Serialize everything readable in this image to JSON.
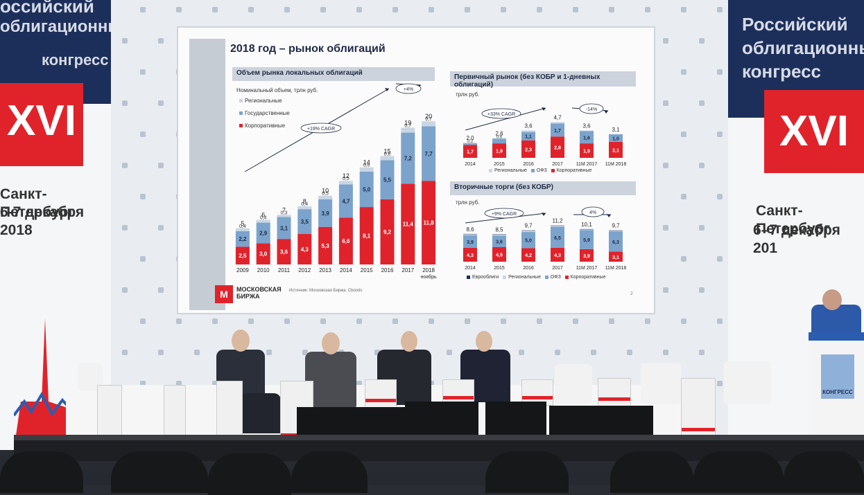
{
  "slide": {
    "title": "2018 год – рынок облигаций",
    "left_panel_title": "Объем рынка локальных облигаций",
    "left_subtitle": "Номинальный объем, трлн руб.",
    "legend": [
      "Региональные",
      "Государственные",
      "Корпоративные"
    ],
    "cagr_label": "+19% CAGR",
    "yoy_label": "+4%",
    "right_top_title": "Первичный рынок (без КОБР и 1-дневных облигаций)",
    "right_top_unit": "трлн руб.",
    "right_top_cagr": "+33% CAGR",
    "right_top_yoy": "-14%",
    "right_top_legend": [
      "Региональные",
      "ОФЗ",
      "Корпоративные"
    ],
    "right_bottom_title": "Вторичные торги (без КОБР)",
    "right_bottom_unit": "трлн руб.",
    "right_bottom_cagr": "+9% CAGR",
    "right_bottom_yoy": "4%",
    "right_bottom_legend": [
      "Еврооблиги",
      "Региональные",
      "ОФЗ",
      "Корпоративные"
    ],
    "logo_line1": "МОСКОВСКАЯ",
    "logo_line2": "БИРЖА",
    "source": "Источник: Московская Биржа, Cbonds",
    "page": "2"
  },
  "banners": {
    "left_title": [
      "оссийский",
      "облигационный",
      "конгресс"
    ],
    "left_number": "XVI",
    "left_city": [
      "Санкт-Петербург",
      "6-7 декабря 2018"
    ],
    "right_title": [
      "Российский",
      "облигационный",
      "конгресс"
    ],
    "right_number": "XVI",
    "right_city": [
      "Санкт-Петербург",
      "6–7 декабря 201"
    ]
  },
  "desk_logo": "КОНГРЕСС",
  "colors": {
    "red": "#e0232b",
    "blue": "#7ba3cc",
    "light": "#c9d6e3",
    "navy": "#1c2f5a"
  },
  "chart_data": [
    {
      "type": "bar",
      "stacked": true,
      "categories": [
        "2009",
        "2010",
        "2011",
        "2012",
        "2013",
        "2014",
        "2015",
        "2016",
        "2017",
        "2018 ноябрь"
      ],
      "series": [
        {
          "name": "Корпоративные",
          "values": [
            2.5,
            3.0,
            3.6,
            4.3,
            5.3,
            6.6,
            8.1,
            9.2,
            11.4,
            11.8
          ]
        },
        {
          "name": "Государственные",
          "values": [
            2.2,
            2.9,
            3.1,
            3.5,
            3.9,
            4.7,
            5.0,
            5.5,
            7.2,
            7.7
          ]
        },
        {
          "name": "Региональные",
          "values": [
            0.4,
            0.4,
            0.3,
            0.4,
            0.5,
            0.5,
            0.6,
            0.6,
            0.7,
            0.7
          ]
        }
      ],
      "totals": [
        "5",
        "6",
        "7",
        "8",
        "10",
        "12",
        "14",
        "15",
        "19",
        "20"
      ],
      "labels": {
        "Корпоративные": [
          "2,5",
          "3,0",
          "3,6",
          "4,3",
          "5,3",
          "6,6",
          "8,1",
          "9,2",
          "11,4",
          "11,8"
        ],
        "Государственные": [
          "2,2",
          "2,9",
          "3,1",
          "3,5",
          "3,9",
          "4,7",
          "5,0",
          "5,5",
          "7,2",
          "7,7"
        ],
        "Региональные": [
          "0,4",
          "0,4",
          "0,3",
          "0,4",
          "0,5",
          "0,5",
          "0,6",
          "0,6",
          "0,7",
          "0,7"
        ]
      },
      "ylim": [
        0,
        21
      ]
    },
    {
      "type": "bar",
      "stacked": true,
      "categories": [
        "2014",
        "2015",
        "2016",
        "2017",
        "11M 2017",
        "11M 2018"
      ],
      "series": [
        {
          "name": "Корпоративные",
          "values": [
            1.7,
            1.9,
            2.3,
            2.8,
            1.9,
            2.1
          ]
        },
        {
          "name": "ОФЗ",
          "values": [
            0.2,
            0.6,
            1.1,
            1.7,
            1.6,
            1.0
          ]
        },
        {
          "name": "Региональные",
          "values": [
            0.1,
            0.1,
            0.2,
            0.2,
            0.1,
            0.0
          ]
        }
      ],
      "totals": [
        "2,0",
        "2,6",
        "3,6",
        "4,7",
        "3,6",
        "3,1"
      ],
      "labels": {
        "Корпоративные": [
          "1,7",
          "1,9",
          "2,3",
          "2,8",
          "1,9",
          "2,1"
        ],
        "ОФЗ": [
          "0,2",
          "0,6",
          "1,1",
          "1,7",
          "1,6",
          "1,0"
        ]
      },
      "ylim": [
        0,
        5
      ]
    },
    {
      "type": "bar",
      "stacked": true,
      "categories": [
        "2014",
        "2015",
        "2016",
        "2017",
        "11M 2017",
        "11M 2018"
      ],
      "series": [
        {
          "name": "Корпоративные",
          "values": [
            4.3,
            4.5,
            4.2,
            4.3,
            3.9,
            3.1
          ]
        },
        {
          "name": "ОФЗ",
          "values": [
            3.9,
            3.6,
            5.0,
            6.5,
            5.9,
            6.3
          ]
        },
        {
          "name": "Региональные",
          "values": [
            0.3,
            0.3,
            0.4,
            0.3,
            0.2,
            0.2
          ]
        },
        {
          "name": "Еврооблиги",
          "values": [
            0.1,
            0.1,
            0.1,
            0.1,
            0.1,
            0.1
          ]
        }
      ],
      "totals": [
        "8,6",
        "8,5",
        "9,7",
        "11,2",
        "10,1",
        "9,7"
      ],
      "labels": {
        "Корпоративные": [
          "4,3",
          "4,5",
          "4,2",
          "4,3",
          "3,9",
          "3,1"
        ],
        "ОФЗ": [
          "3,9",
          "3,6",
          "5,0",
          "6,5",
          "5,9",
          "6,3"
        ]
      },
      "ylim": [
        0,
        12
      ]
    }
  ]
}
